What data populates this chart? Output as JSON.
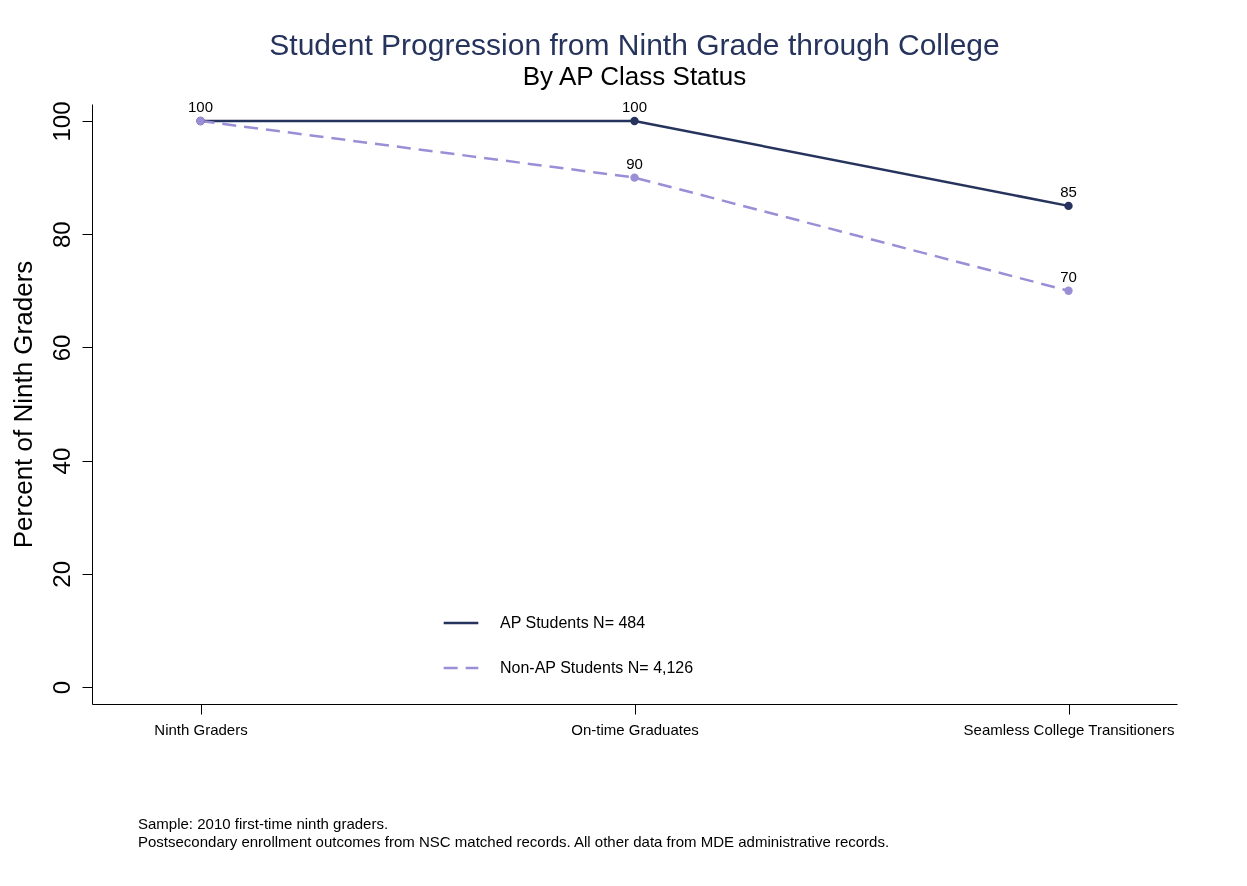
{
  "chart_data": {
    "type": "line",
    "title": "Student Progression from Ninth Grade through College",
    "subtitle": "By AP Class Status",
    "ylabel": "Percent of Ninth Graders",
    "categories": [
      "Ninth Graders",
      "On-time Graduates",
      "Seamless College Transitioners"
    ],
    "series": [
      {
        "name": "AP Students  N= 484",
        "color": "#26335c",
        "line_style": "solid",
        "values": [
          100,
          100,
          85
        ],
        "value_labels": [
          "100",
          "100",
          "85"
        ]
      },
      {
        "name": "Non-AP Students  N= 4,126",
        "color": "#9a8fd6",
        "line_style": "dashed",
        "values": [
          100,
          90,
          70
        ],
        "value_labels": [
          null,
          "90",
          "70"
        ]
      }
    ],
    "ylim": [
      -3,
      103
    ],
    "yticks": [
      0,
      20,
      40,
      60,
      80,
      100
    ],
    "grid": false,
    "legend": "bottom",
    "marker": "circle",
    "annotations": [
      "Sample: 2010 first-time ninth graders.",
      "Postsecondary enrollment outcomes from NSC matched records. All other data from MDE administrative records."
    ]
  }
}
